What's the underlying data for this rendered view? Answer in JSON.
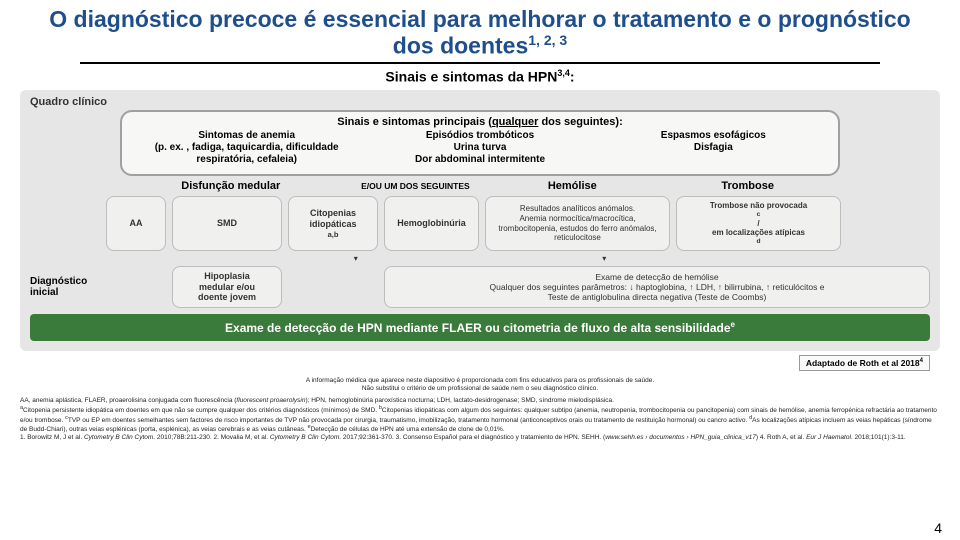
{
  "colors": {
    "title": "#1f4e8c",
    "green_bar_bg": "#3a7a3a",
    "box_border": "#bdbdbd",
    "clinical_bg": "#e6e6e6",
    "signs_bg": "#f7f7f5"
  },
  "title_html": "O diagnóstico precoce é essencial para melhorar o tratamento e o prognóstico dos doentes<sup>1, 2, 3</sup>",
  "subtitle_html": "Sinais e sintomas da HPN<sup>3,4</sup>:",
  "clinical_label": "Quadro clínico",
  "signs_header_html": "Sinais e sintomas principais (<u>qualquer</u> dos seguintes):",
  "signs_cols": {
    "c1": "Sintomas de anemia\n(p. ex. , fadiga, taquicardia, dificuldade respiratória, cefaleia)",
    "c2": "Episódios trombóticos\nUrina turva\nDor abdominal intermitente",
    "c3": "Espasmos esofágicos\nDisfagia"
  },
  "row3": {
    "left": "Disfunção medular",
    "mid": "E/OU UM DOS SEGUINTES",
    "midR": "Hemólise",
    "right": "Trombose"
  },
  "boxes": {
    "aa": "AA",
    "smd": "SMD",
    "cito_html": "Citopenias idiopáticas<sup>a,b</sup>",
    "hemo": "Hemoglobinúria",
    "res_html": "Resultados analíticos anómalos.<br>Anemia normocítica/macrocítica, trombocitopenia, estudos do ferro anómalos, reticulocitose",
    "tromb_html": "Trombose não provocada<sup>c</sup>/<br>em localizações atípicas<sup>d</sup>",
    "hipo": "Hipoplasia\nmedular e/ou\ndoente jovem",
    "exame_html": "Exame de detecção de hemólise<br>Qualquer dos seguintes parâmetros: ↓ haptoglobina, ↑ LDH, ↑ bilirrubina, ↑ reticulócitos e<br>Teste de antiglobulina directa negativa (Teste de Coombs)"
  },
  "diag_label": "Diagnóstico inicial",
  "green_bar_html": "Exame de detecção de HPN mediante FLAER ou citometria de fluxo de alta sensibilidade<sup>e</sup>",
  "adapted_html": "Adaptado de Roth et al 2018<sup>4</sup>",
  "footer_lead": "A informação médica que aparece neste diapositivo é proporcionada com fins educativos para os profissionais de saúde.\nNão substitui o critério de um profissional de saúde nem o seu diagnóstico clínico.",
  "footer_abbrev_html": "AA, anemia aplástica, FLAER, proaerolisina conjugada com fluorescência (<i>fluorescent proaerolysin</i>); HPN, hemoglobinúria paroxística nocturna; LDH, lactato-desidrogenase; SMD, síndrome mielodisplásica.<br><sup>a</sup>Citopenia persistente idiopática em doentes em que não se cumpre qualquer dos critérios diagnósticos (mínimos) de SMD. <sup>b</sup>Citopenias idiopáticas com algum dos seguintes: qualquer subtipo (anemia, neutropenia, trombocitopenia ou pancitopenia) com sinais de hemólise, anemia ferropénica refractária ao tratamento e/ou trombose. <sup>c</sup>TVP ou EP em doentes semelhantes sem factores de risco importantes de TVP não provocada por cirurgia, traumatismo, imobilização, tratamento hormonal (anticonceptivos orais ou tratamento de restituição hormonal) ou cancro activo. <sup>d</sup>As localizações atípicas incluem as veias hepáticas (síndrome de Budd-Chiari), outras veias esplénicas (porta, esplénica), as veias cerebrais e as veias cutâneas. <sup>e</sup>Detecção de células de HPN até uma extensão de clone de 0,01%.<br>1. Borowitz M, J et al. <i>Cytometry B Clin Cytom</i>. 2010;78B:211-230. 2. Movalia M, et al. <i>Cytometry B Clin Cytom</i>. 2017;92:361-370. 3. Consenso Español para el diagnóstico y tratamiento de HPN. SEHH. (<i>www.sehh.es › documentos › HPN_guia_clinica_v17</i>) 4. Roth A, et al. <i>Eur J Haematol</i>. 2018;101(1):3-11.",
  "page_num": "4"
}
